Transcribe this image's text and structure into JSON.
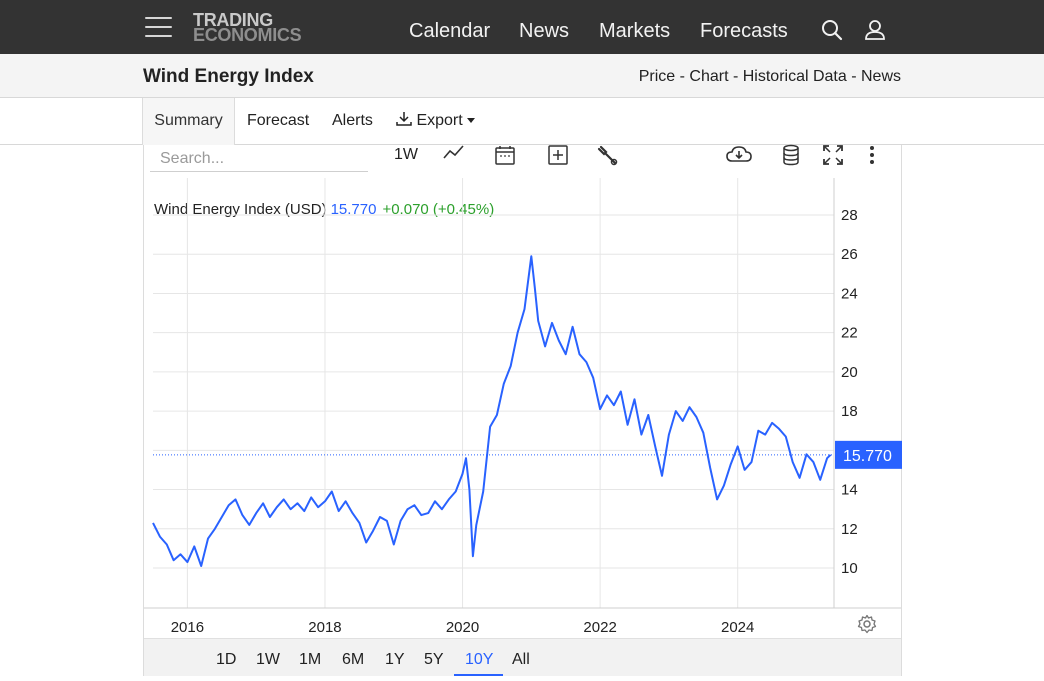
{
  "brand": {
    "line1": "TRADING",
    "line2": "ECONOMICS"
  },
  "nav": [
    "Calendar",
    "News",
    "Markets",
    "Forecasts"
  ],
  "icons": {
    "menu": "hamburger-icon",
    "search": "search-icon",
    "user": "user-icon"
  },
  "title": "Wind Energy Index",
  "crumbs": [
    "Price",
    "Chart",
    "Historical Data",
    "News"
  ],
  "crumb_sep": " - ",
  "tabs": [
    "Summary",
    "Forecast",
    "Alerts",
    "Export"
  ],
  "search_placeholder": "Search...",
  "toolbar": {
    "interval": "1W"
  },
  "legend": {
    "name": "Wind Energy Index (USD)",
    "value": "15.770",
    "change": "+0.070 (+0.45%)"
  },
  "last_price_label": "15.770",
  "ranges": [
    "1D",
    "1W",
    "1M",
    "6M",
    "1Y",
    "5Y",
    "10Y",
    "All"
  ],
  "active_range": "10Y",
  "colors": {
    "line": "#2962ff",
    "positive": "#2ca02c",
    "navbar": "#333333"
  },
  "chart_data": {
    "type": "line",
    "title": "",
    "xlabel": "",
    "ylabel": "",
    "x_ticks": [
      "2016",
      "2018",
      "2020",
      "2022",
      "2024"
    ],
    "y_ticks": [
      10,
      12,
      14,
      16,
      18,
      20,
      22,
      24,
      26,
      28
    ],
    "ylim": [
      8,
      29
    ],
    "xlim": [
      2015.5,
      2025.4
    ],
    "grid": true,
    "last_value": 15.77,
    "series": [
      {
        "name": "Wind Energy Index (USD)",
        "x": [
          2015.5,
          2015.6,
          2015.7,
          2015.8,
          2015.9,
          2016.0,
          2016.1,
          2016.2,
          2016.3,
          2016.4,
          2016.5,
          2016.6,
          2016.7,
          2016.8,
          2016.9,
          2017.0,
          2017.1,
          2017.2,
          2017.3,
          2017.4,
          2017.5,
          2017.6,
          2017.7,
          2017.8,
          2017.9,
          2018.0,
          2018.1,
          2018.2,
          2018.3,
          2018.4,
          2018.5,
          2018.6,
          2018.7,
          2018.8,
          2018.9,
          2019.0,
          2019.1,
          2019.2,
          2019.3,
          2019.4,
          2019.5,
          2019.6,
          2019.7,
          2019.8,
          2019.9,
          2020.0,
          2020.05,
          2020.1,
          2020.15,
          2020.2,
          2020.3,
          2020.4,
          2020.5,
          2020.6,
          2020.7,
          2020.8,
          2020.9,
          2021.0,
          2021.05,
          2021.1,
          2021.2,
          2021.3,
          2021.4,
          2021.5,
          2021.6,
          2021.7,
          2021.8,
          2021.9,
          2022.0,
          2022.1,
          2022.2,
          2022.3,
          2022.4,
          2022.5,
          2022.6,
          2022.7,
          2022.8,
          2022.9,
          2023.0,
          2023.1,
          2023.2,
          2023.3,
          2023.4,
          2023.5,
          2023.6,
          2023.7,
          2023.8,
          2023.9,
          2024.0,
          2024.1,
          2024.2,
          2024.3,
          2024.4,
          2024.5,
          2024.6,
          2024.7,
          2024.8,
          2024.9,
          2025.0,
          2025.1,
          2025.2,
          2025.3,
          2025.35
        ],
        "values": [
          12.3,
          11.6,
          11.2,
          10.4,
          10.7,
          10.3,
          11.1,
          10.1,
          11.5,
          12.0,
          12.6,
          13.2,
          13.5,
          12.7,
          12.2,
          12.8,
          13.3,
          12.6,
          13.1,
          13.5,
          13.0,
          13.3,
          12.9,
          13.6,
          13.1,
          13.4,
          13.9,
          12.9,
          13.4,
          12.8,
          12.3,
          11.3,
          11.9,
          12.6,
          12.4,
          11.2,
          12.4,
          13.0,
          13.2,
          12.7,
          12.8,
          13.4,
          13.0,
          13.5,
          13.9,
          14.8,
          15.6,
          14.0,
          10.6,
          12.2,
          13.9,
          17.2,
          17.8,
          19.4,
          20.3,
          22.0,
          23.2,
          25.9,
          24.3,
          22.6,
          21.3,
          22.5,
          21.6,
          20.9,
          22.3,
          20.9,
          20.5,
          19.7,
          18.1,
          18.8,
          18.3,
          19.0,
          17.3,
          18.6,
          16.8,
          17.8,
          16.2,
          14.7,
          16.8,
          18.0,
          17.5,
          18.2,
          17.7,
          16.9,
          15.1,
          13.5,
          14.2,
          15.3,
          16.2,
          15.0,
          15.4,
          17.0,
          16.8,
          17.4,
          17.1,
          16.7,
          15.4,
          14.6,
          15.8,
          15.4,
          14.5,
          15.6,
          15.77
        ]
      }
    ]
  }
}
